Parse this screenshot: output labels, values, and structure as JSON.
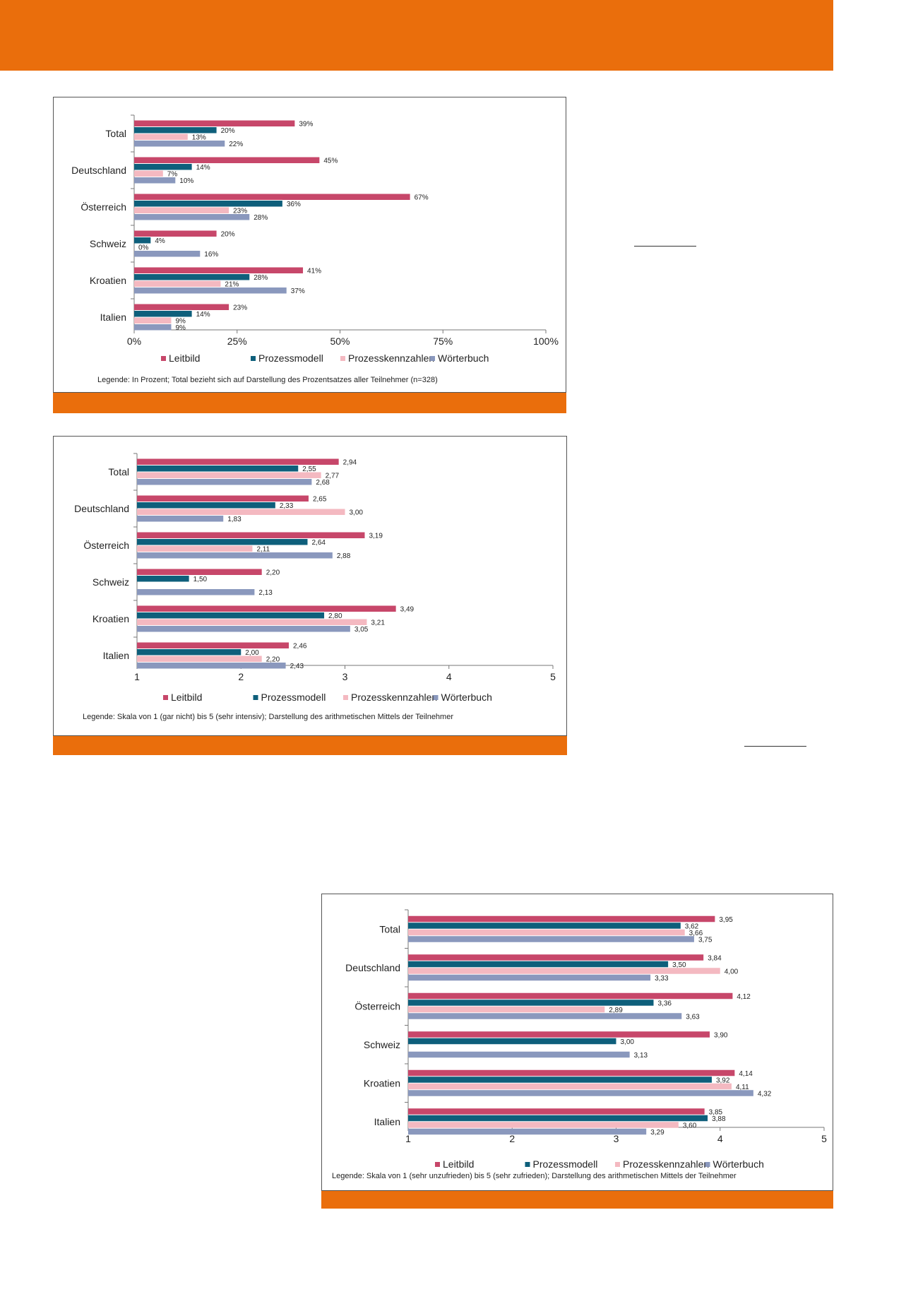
{
  "colors": {
    "accent": "#ea6e0c",
    "leitbild": "#c7476a",
    "prozessmodell": "#0e5f7b",
    "prozesskennzahlen": "#f4b9c1",
    "woerterbuch": "#8a98bd"
  },
  "chart_data": [
    {
      "type": "bar",
      "orientation": "horizontal",
      "categories": [
        "Total",
        "Deutschland",
        "Österreich",
        "Schweiz",
        "Kroatien",
        "Italien"
      ],
      "series": [
        {
          "name": "Leitbild",
          "values": [
            39,
            45,
            67,
            20,
            41,
            23
          ],
          "labels": [
            "39%",
            "45%",
            "67%",
            "20%",
            "41%",
            "23%"
          ]
        },
        {
          "name": "Prozessmodell",
          "values": [
            20,
            14,
            36,
            4,
            28,
            14
          ],
          "labels": [
            "20%",
            "14%",
            "36%",
            "4%",
            "28%",
            "14%"
          ]
        },
        {
          "name": "Prozesskennzahlen",
          "values": [
            13,
            7,
            23,
            0,
            21,
            9
          ],
          "labels": [
            "13%",
            "7%",
            "23%",
            "0%",
            "21%",
            "9%"
          ]
        },
        {
          "name": "Wörterbuch",
          "values": [
            22,
            10,
            28,
            16,
            37,
            9
          ],
          "labels": [
            "22%",
            "10%",
            "28%",
            "16%",
            "37%",
            "9%"
          ]
        }
      ],
      "xlim": [
        0,
        100
      ],
      "ticks": [
        0,
        25,
        50,
        75,
        100
      ],
      "tick_labels": [
        "0%",
        "25%",
        "50%",
        "75%",
        "100%"
      ],
      "note": "Legende: In Prozent; Total bezieht sich auf Darstellung des Prozentsatzes aller Teilnehmer (n=328)"
    },
    {
      "type": "bar",
      "orientation": "horizontal",
      "categories": [
        "Total",
        "Deutschland",
        "Österreich",
        "Schweiz",
        "Kroatien",
        "Italien"
      ],
      "series": [
        {
          "name": "Leitbild",
          "values": [
            2.94,
            2.65,
            3.19,
            2.2,
            3.49,
            2.46
          ],
          "labels": [
            "2,94",
            "2,65",
            "3,19",
            "2,20",
            "3,49",
            "2,46"
          ]
        },
        {
          "name": "Prozessmodell",
          "values": [
            2.55,
            2.33,
            2.64,
            1.5,
            2.8,
            2.0
          ],
          "labels": [
            "2,55",
            "2,33",
            "2,64",
            "1,50",
            "2,80",
            "2,00"
          ]
        },
        {
          "name": "Prozesskennzahlen",
          "values": [
            2.77,
            3.0,
            2.11,
            null,
            3.21,
            2.2
          ],
          "labels": [
            "2,77",
            "3,00",
            "2,11",
            null,
            "3,21",
            "2,20"
          ]
        },
        {
          "name": "Wörterbuch",
          "values": [
            2.68,
            1.83,
            2.88,
            2.13,
            3.05,
            2.43
          ],
          "labels": [
            "2,68",
            "1,83",
            "2,88",
            "2,13",
            "3,05",
            "2,43"
          ]
        }
      ],
      "xlim": [
        1,
        5
      ],
      "ticks": [
        1,
        2,
        3,
        4,
        5
      ],
      "tick_labels": [
        "1",
        "2",
        "3",
        "4",
        "5"
      ],
      "note": "Legende: Skala von 1 (gar nicht) bis 5 (sehr intensiv); Darstellung des arithmetischen Mittels der Teilnehmer"
    },
    {
      "type": "bar",
      "orientation": "horizontal",
      "categories": [
        "Total",
        "Deutschland",
        "Österreich",
        "Schweiz",
        "Kroatien",
        "Italien"
      ],
      "series": [
        {
          "name": "Leitbild",
          "values": [
            3.95,
            3.84,
            4.12,
            3.9,
            4.14,
            3.85
          ],
          "labels": [
            "3,95",
            "3,84",
            "4,12",
            "3,90",
            "4,14",
            "3,85"
          ]
        },
        {
          "name": "Prozessmodell",
          "values": [
            3.62,
            3.5,
            3.36,
            3.0,
            3.92,
            3.88
          ],
          "labels": [
            "3,62",
            "3,50",
            "3,36",
            "3,00",
            "3,92",
            "3,88"
          ]
        },
        {
          "name": "Prozesskennzahlen",
          "values": [
            3.66,
            4.0,
            2.89,
            null,
            4.11,
            3.6
          ],
          "labels": [
            "3,66",
            "4,00",
            "2,89",
            null,
            "4,11",
            "3,60"
          ]
        },
        {
          "name": "Wörterbuch",
          "values": [
            3.75,
            3.33,
            3.63,
            3.13,
            4.32,
            3.29
          ],
          "labels": [
            "3,75",
            "3,33",
            "3,63",
            "3,13",
            "4,32",
            "3,29"
          ]
        }
      ],
      "xlim": [
        1,
        5
      ],
      "ticks": [
        1,
        2,
        3,
        4,
        5
      ],
      "tick_labels": [
        "1",
        "2",
        "3",
        "4",
        "5"
      ],
      "note": "Legende: Skala von 1 (sehr unzufrieden) bis 5 (sehr zufrieden); Darstellung des arithmetischen Mittels der Teilnehmer"
    }
  ]
}
